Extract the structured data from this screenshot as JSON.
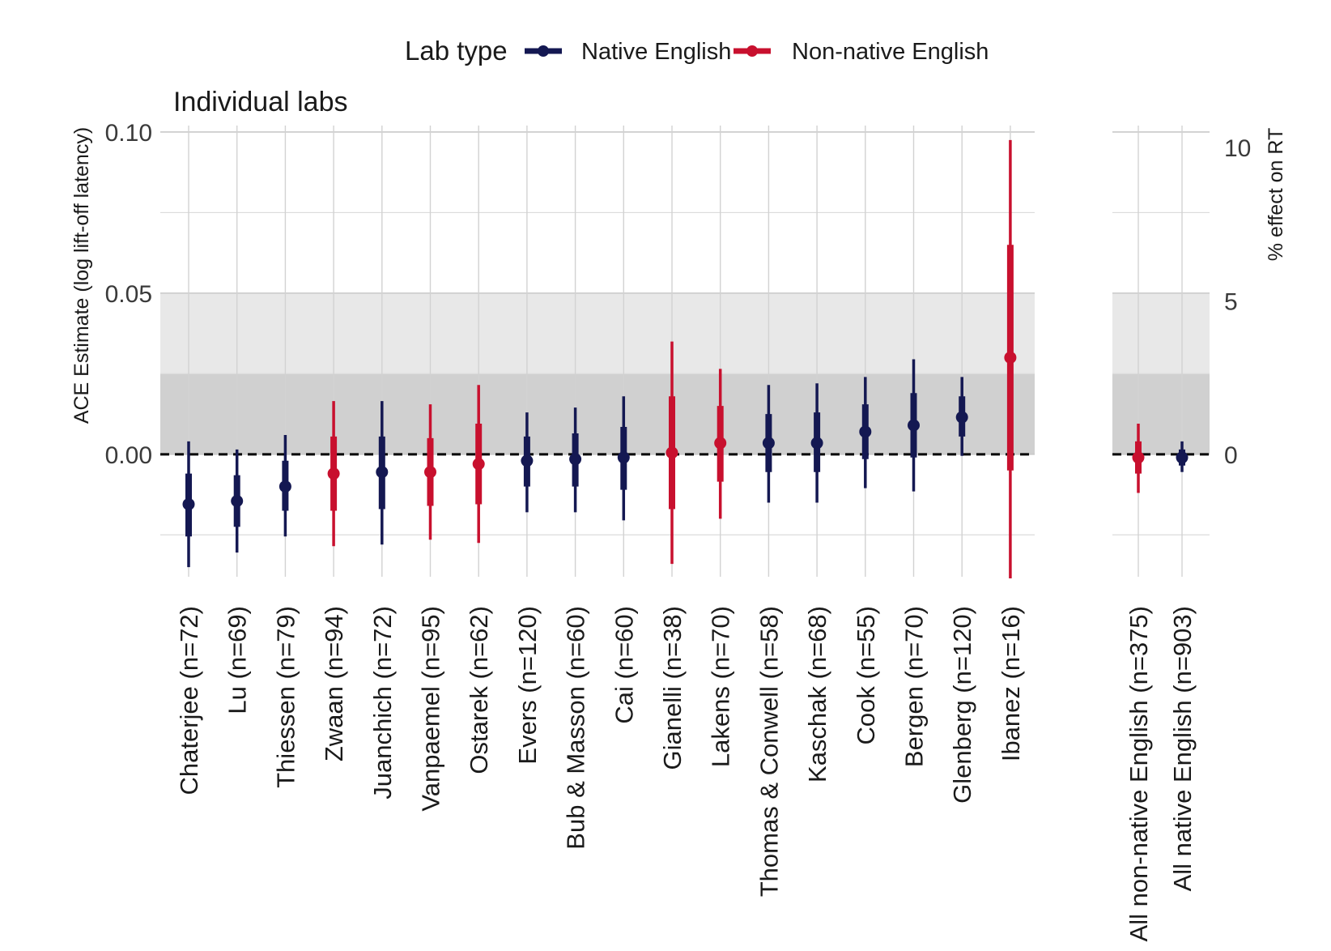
{
  "chart_data": {
    "type": "scatter",
    "title": "",
    "legend": {
      "title": "Lab type",
      "placement": "top",
      "entries": [
        {
          "name": "Native English",
          "color": "#141852"
        },
        {
          "name": "Non-native English",
          "color": "#c8102e"
        }
      ]
    },
    "ylabel": "ACE Estimate (log lift-off latency)",
    "ylabel_right": "% effect on RT",
    "y_ticks": [
      0.0,
      0.05,
      0.1
    ],
    "y_tick_labels": [
      "0.00",
      "0.05",
      "0.10"
    ],
    "y_ticks_right": [
      0,
      5,
      10
    ],
    "ylim": [
      -0.038,
      0.102
    ],
    "grid": true,
    "shaded_bands": [
      {
        "from": 0.0,
        "to": 0.025,
        "color": "#d0d0d0"
      },
      {
        "from": 0.025,
        "to": 0.05,
        "color": "#e8e8e8"
      }
    ],
    "reference_line": 0.0,
    "panels": [
      {
        "title": "Individual labs",
        "labs": [
          {
            "label": "Chaterjee (n=72)",
            "type": "Native English",
            "estimate": -0.0155,
            "ci50": [
              -0.0255,
              -0.006
            ],
            "ci95": [
              -0.035,
              0.004
            ]
          },
          {
            "label": "Lu (n=69)",
            "type": "Native English",
            "estimate": -0.0145,
            "ci50": [
              -0.0225,
              -0.0065
            ],
            "ci95": [
              -0.0305,
              0.0015
            ]
          },
          {
            "label": "Thiessen (n=79)",
            "type": "Native English",
            "estimate": -0.01,
            "ci50": [
              -0.0175,
              -0.002
            ],
            "ci95": [
              -0.0255,
              0.006
            ]
          },
          {
            "label": "Zwaan (n=94)",
            "type": "Non-native English",
            "estimate": -0.006,
            "ci50": [
              -0.0175,
              0.0055
            ],
            "ci95": [
              -0.0285,
              0.0165
            ]
          },
          {
            "label": "Juanchich (n=72)",
            "type": "Native English",
            "estimate": -0.0055,
            "ci50": [
              -0.017,
              0.0055
            ],
            "ci95": [
              -0.028,
              0.0165
            ]
          },
          {
            "label": "Vanpaemel (n=95)",
            "type": "Non-native English",
            "estimate": -0.0055,
            "ci50": [
              -0.016,
              0.005
            ],
            "ci95": [
              -0.0265,
              0.0155
            ]
          },
          {
            "label": "Ostarek (n=62)",
            "type": "Non-native English",
            "estimate": -0.003,
            "ci50": [
              -0.0155,
              0.0095
            ],
            "ci95": [
              -0.0275,
              0.0215
            ]
          },
          {
            "label": "Evers (n=120)",
            "type": "Native English",
            "estimate": -0.002,
            "ci50": [
              -0.01,
              0.0055
            ],
            "ci95": [
              -0.018,
              0.013
            ]
          },
          {
            "label": "Bub & Masson (n=60)",
            "type": "Native English",
            "estimate": -0.0015,
            "ci50": [
              -0.01,
              0.0065
            ],
            "ci95": [
              -0.018,
              0.0145
            ]
          },
          {
            "label": "Cai (n=60)",
            "type": "Native English",
            "estimate": -0.001,
            "ci50": [
              -0.011,
              0.0085
            ],
            "ci95": [
              -0.0205,
              0.018
            ]
          },
          {
            "label": "Gianelli (n=38)",
            "type": "Non-native English",
            "estimate": 0.0005,
            "ci50": [
              -0.017,
              0.018
            ],
            "ci95": [
              -0.034,
              0.035
            ]
          },
          {
            "label": "Lakens (n=70)",
            "type": "Non-native English",
            "estimate": 0.0035,
            "ci50": [
              -0.0085,
              0.015
            ],
            "ci95": [
              -0.02,
              0.0265
            ]
          },
          {
            "label": "Thomas & Conwell (n=58)",
            "type": "Native English",
            "estimate": 0.0035,
            "ci50": [
              -0.0055,
              0.0125
            ],
            "ci95": [
              -0.015,
              0.0215
            ]
          },
          {
            "label": "Kaschak (n=68)",
            "type": "Native English",
            "estimate": 0.0035,
            "ci50": [
              -0.0055,
              0.013
            ],
            "ci95": [
              -0.015,
              0.022
            ]
          },
          {
            "label": "Cook (n=55)",
            "type": "Native English",
            "estimate": 0.007,
            "ci50": [
              -0.0015,
              0.0155
            ],
            "ci95": [
              -0.0105,
              0.024
            ]
          },
          {
            "label": "Bergen (n=70)",
            "type": "Native English",
            "estimate": 0.009,
            "ci50": [
              -0.001,
              0.019
            ],
            "ci95": [
              -0.0115,
              0.0295
            ]
          },
          {
            "label": "Glenberg (n=120)",
            "type": "Native English",
            "estimate": 0.0115,
            "ci50": [
              0.0055,
              0.018
            ],
            "ci95": [
              -0.0005,
              0.024
            ]
          },
          {
            "label": "Ibanez (n=16)",
            "type": "Non-native English",
            "estimate": 0.03,
            "ci50": [
              -0.005,
              0.065
            ],
            "ci95": [
              -0.0385,
              0.0975
            ]
          }
        ]
      },
      {
        "title": "",
        "labs": [
          {
            "label": "All non-native English (n=375)",
            "type": "Non-native English",
            "estimate": -0.001,
            "ci50": [
              -0.006,
              0.004
            ],
            "ci95": [
              -0.012,
              0.0095
            ]
          },
          {
            "label": "All native English (n=903)",
            "type": "Native English",
            "estimate": -0.001,
            "ci50": [
              -0.0035,
              0.0015
            ],
            "ci95": [
              -0.0055,
              0.004
            ]
          }
        ]
      }
    ]
  }
}
